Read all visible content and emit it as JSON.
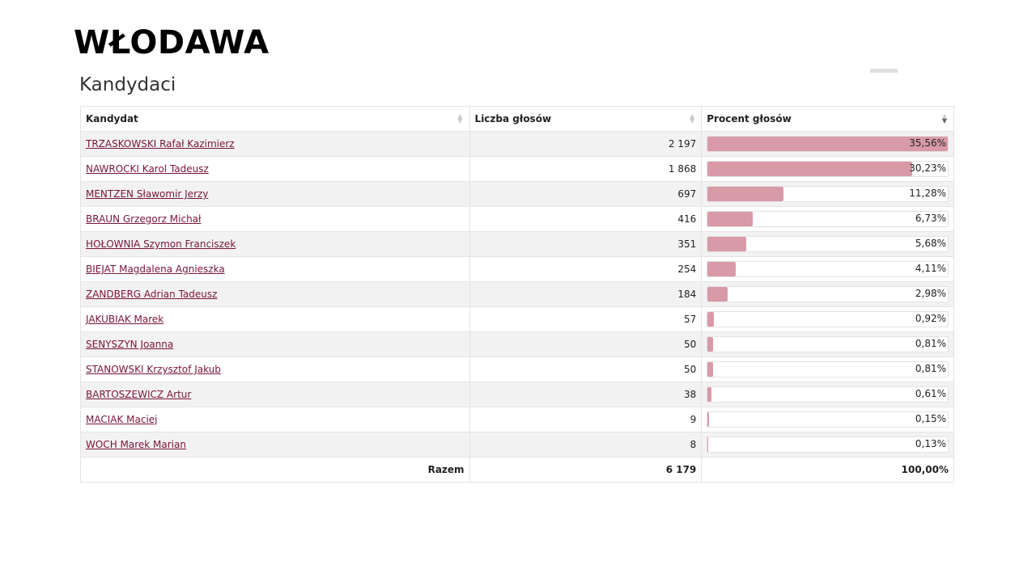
{
  "page_title": "WŁODAWA",
  "section_title": "Kandydaci",
  "headers": {
    "candidate": "Kandydat",
    "votes": "Liczba głosów",
    "percent": "Procent głosów"
  },
  "bar_color": "#d99aa8",
  "rows": [
    {
      "name": "TRZASKOWSKI Rafał Kazimierz",
      "votes": "2 197",
      "percent": "35,56%",
      "pct": 35.56
    },
    {
      "name": "NAWROCKI Karol Tadeusz",
      "votes": "1 868",
      "percent": "30,23%",
      "pct": 30.23
    },
    {
      "name": "MENTZEN Sławomir Jerzy",
      "votes": "697",
      "percent": "11,28%",
      "pct": 11.28
    },
    {
      "name": "BRAUN Grzegorz Michał",
      "votes": "416",
      "percent": "6,73%",
      "pct": 6.73
    },
    {
      "name": "HOŁOWNIA Szymon Franciszek",
      "votes": "351",
      "percent": "5,68%",
      "pct": 5.68
    },
    {
      "name": "BIEJAT Magdalena Agnieszka",
      "votes": "254",
      "percent": "4,11%",
      "pct": 4.11
    },
    {
      "name": "ZANDBERG Adrian Tadeusz",
      "votes": "184",
      "percent": "2,98%",
      "pct": 2.98
    },
    {
      "name": "JAKUBIAK Marek",
      "votes": "57",
      "percent": "0,92%",
      "pct": 0.92
    },
    {
      "name": "SENYSZYN Joanna",
      "votes": "50",
      "percent": "0,81%",
      "pct": 0.81
    },
    {
      "name": "STANOWSKI Krzysztof Jakub",
      "votes": "50",
      "percent": "0,81%",
      "pct": 0.81
    },
    {
      "name": "BARTOSZEWICZ Artur",
      "votes": "38",
      "percent": "0,61%",
      "pct": 0.61
    },
    {
      "name": "MACIAK Maciej",
      "votes": "9",
      "percent": "0,15%",
      "pct": 0.15
    },
    {
      "name": "WOCH Marek Marian",
      "votes": "8",
      "percent": "0,13%",
      "pct": 0.13
    }
  ],
  "total": {
    "label": "Razem",
    "votes": "6 179",
    "percent": "100,00%"
  }
}
